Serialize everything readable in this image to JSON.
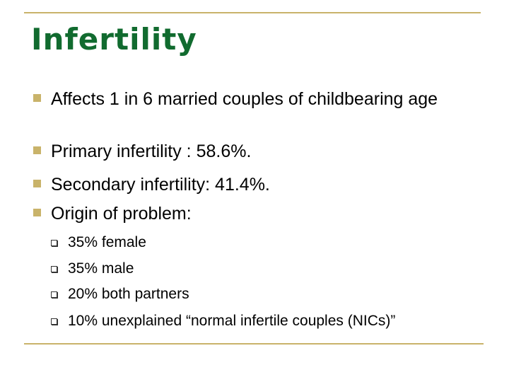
{
  "slide": {
    "title": "Infertility",
    "bullets": [
      "Affects 1 in 6 married couples of childbearing age",
      "Primary infertility : 58.6%.",
      "Secondary infertility: 41.4%.",
      "Origin of problem:"
    ],
    "sub_bullets": [
      "35% female",
      "35% male",
      "20% both partners",
      "10% unexplained “normal infertile couples (NICs)”"
    ],
    "colors": {
      "title": "#116b2f",
      "accent": "#c9b36a",
      "text": "#000000"
    }
  }
}
